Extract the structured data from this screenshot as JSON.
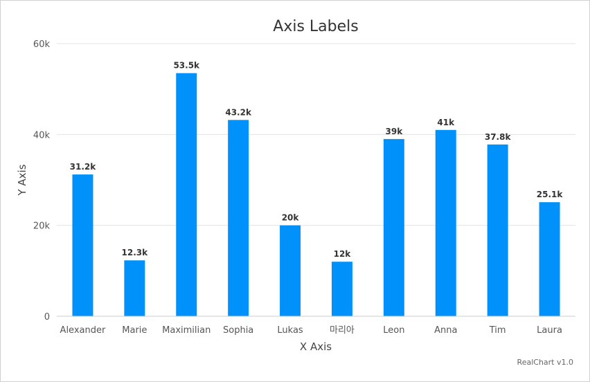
{
  "chart_data": {
    "type": "bar",
    "title": "Axis Labels",
    "xlabel": "X Axis",
    "ylabel": "Y Axis",
    "categories": [
      "Alexander",
      "Marie",
      "Maximilian",
      "Sophia",
      "Lukas",
      "마리아",
      "Leon",
      "Anna",
      "Tim",
      "Laura"
    ],
    "values": [
      31200,
      12300,
      53500,
      43200,
      20000,
      12000,
      39000,
      41000,
      37800,
      25100
    ],
    "data_labels": [
      "31.2k",
      "12.3k",
      "53.5k",
      "43.2k",
      "20k",
      "12k",
      "39k",
      "41k",
      "37.8k",
      "25.1k"
    ],
    "ylim": [
      0,
      60000
    ],
    "yticks": [
      0,
      20000,
      40000,
      60000
    ],
    "ytick_labels": [
      "0",
      "20k",
      "40k",
      "60k"
    ],
    "grid": true,
    "legend": "none",
    "bar_color": "#0091fa"
  },
  "credit": "RealChart v1.0"
}
